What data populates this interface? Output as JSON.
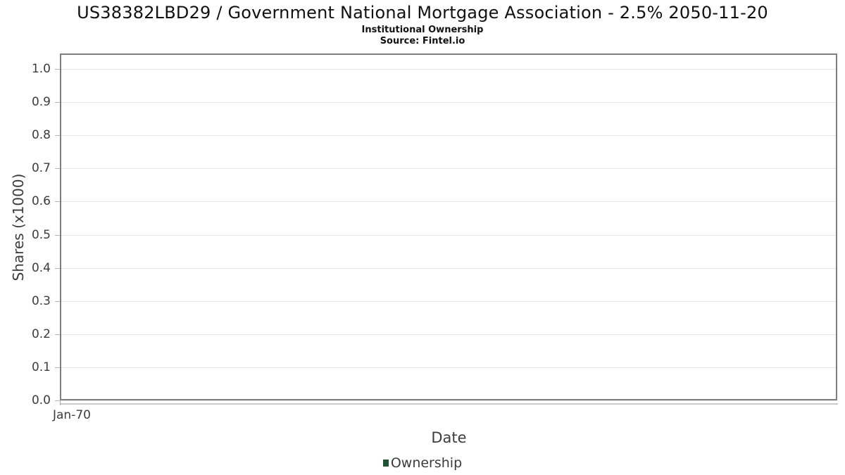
{
  "header": {
    "title": "US38382LBD29 / Government National Mortgage Association - 2.5% 2050-11-20",
    "subtitle": "Institutional Ownership",
    "source": "Source: Fintel.io"
  },
  "chart_data": {
    "type": "line",
    "title": "US38382LBD29 / Government National Mortgage Association - 2.5% 2050-11-20",
    "subtitle": "Institutional Ownership",
    "source": "Source: Fintel.io",
    "xlabel": "Date",
    "ylabel": "Shares (x1000)",
    "x_ticks": [
      "Jan-70"
    ],
    "y_ticks": [
      "0.0",
      "0.1",
      "0.2",
      "0.3",
      "0.4",
      "0.5",
      "0.6",
      "0.7",
      "0.8",
      "0.9",
      "1.0"
    ],
    "ylim": [
      0.0,
      1.046
    ],
    "grid": "horizontal",
    "legend_position": "bottom-center",
    "series": [
      {
        "name": "Ownership",
        "color": "#1e5631",
        "x": [],
        "y": []
      }
    ]
  },
  "legend": {
    "label": "Ownership",
    "marker_color": "#1e5631"
  },
  "colors": {
    "plot_border": "#7f7f7f",
    "gridline": "#e6e6e6",
    "axis_line": "#c9c9c9",
    "tick_text": "#3c3c3c",
    "title_text": "#111111",
    "legend_green": "#1e5631",
    "background": "#ffffff"
  }
}
